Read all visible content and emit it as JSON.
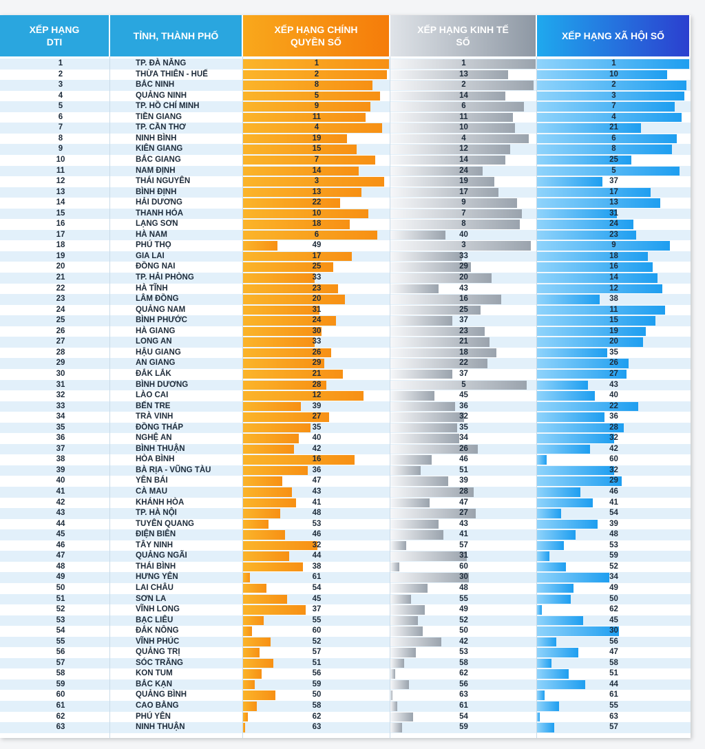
{
  "table": {
    "headers": [
      "XẾP HẠNG DTI",
      "TỈNH, THÀNH PHỐ",
      "XẾP HẠNG CHÍNH QUYỀN SỐ",
      "XẾP HẠNG KINH TẾ SỐ",
      "XẾP HẠNG XÃ HỘI SỐ"
    ],
    "rows": [
      [
        1,
        "TP. ĐÀ NẴNG",
        1,
        1,
        1
      ],
      [
        2,
        "THỪA THIÊN - HUẾ",
        2,
        13,
        10
      ],
      [
        3,
        "BẮC NINH",
        8,
        2,
        2
      ],
      [
        4,
        "QUẢNG NINH",
        5,
        14,
        3
      ],
      [
        5,
        "TP. HỒ CHÍ MINH",
        9,
        6,
        7
      ],
      [
        6,
        "TIỀN GIANG",
        11,
        11,
        4
      ],
      [
        7,
        "TP. CẦN THƠ",
        4,
        10,
        21
      ],
      [
        8,
        "NINH BÌNH",
        19,
        4,
        6
      ],
      [
        9,
        "KIÊN GIANG",
        15,
        12,
        8
      ],
      [
        10,
        "BẮC GIANG",
        7,
        14,
        25
      ],
      [
        11,
        "NAM ĐỊNH",
        14,
        24,
        5
      ],
      [
        12,
        "THÁI NGUYÊN",
        3,
        19,
        37
      ],
      [
        13,
        "BÌNH ĐỊNH",
        13,
        17,
        17
      ],
      [
        14,
        "HẢI DƯƠNG",
        22,
        9,
        13
      ],
      [
        15,
        "THANH HÓA",
        10,
        7,
        31
      ],
      [
        16,
        "LẠNG SƠN",
        18,
        8,
        24
      ],
      [
        17,
        "HÀ NAM",
        6,
        40,
        23
      ],
      [
        18,
        "PHÚ THỌ",
        49,
        3,
        9
      ],
      [
        19,
        "GIA LAI",
        17,
        33,
        18
      ],
      [
        20,
        "ĐỒNG NAI",
        25,
        29,
        16
      ],
      [
        21,
        "TP. HẢI PHÒNG",
        33,
        20,
        14
      ],
      [
        22,
        "HÀ TĨNH",
        23,
        43,
        12
      ],
      [
        23,
        "LÂM ĐỒNG",
        20,
        16,
        38
      ],
      [
        24,
        "QUẢNG NAM",
        31,
        25,
        11
      ],
      [
        25,
        "BÌNH PHƯỚC",
        24,
        37,
        15
      ],
      [
        26,
        "HÀ GIANG",
        30,
        23,
        19
      ],
      [
        27,
        "LONG AN",
        33,
        21,
        20
      ],
      [
        28,
        "HẬU GIANG",
        26,
        18,
        35
      ],
      [
        29,
        "AN GIANG",
        29,
        22,
        26
      ],
      [
        30,
        "ĐẮK LẮK",
        21,
        37,
        27
      ],
      [
        31,
        "BÌNH DƯƠNG",
        28,
        5,
        43
      ],
      [
        32,
        "LÀO CAI",
        12,
        45,
        40
      ],
      [
        33,
        "BẾN TRE",
        39,
        36,
        22
      ],
      [
        34,
        "TRÀ VINH",
        27,
        32,
        36
      ],
      [
        35,
        "ĐỒNG THÁP",
        35,
        35,
        28
      ],
      [
        36,
        "NGHỆ AN",
        40,
        34,
        32
      ],
      [
        37,
        "BÌNH THUẬN",
        42,
        26,
        42
      ],
      [
        38,
        "HÒA BÌNH",
        16,
        46,
        60
      ],
      [
        39,
        "BÀ RỊA - VŨNG TÀU",
        36,
        51,
        32
      ],
      [
        40,
        "YÊN BÁI",
        47,
        39,
        29
      ],
      [
        41,
        "CÀ MAU",
        43,
        28,
        46
      ],
      [
        42,
        "KHÁNH HÒA",
        41,
        47,
        41
      ],
      [
        43,
        "TP. HÀ NỘI",
        48,
        27,
        54
      ],
      [
        44,
        "TUYÊN QUANG",
        53,
        43,
        39
      ],
      [
        45,
        "ĐIỆN BIÊN",
        46,
        41,
        48
      ],
      [
        46,
        "TÂY NINH",
        32,
        57,
        53
      ],
      [
        47,
        "QUẢNG NGÃI",
        44,
        31,
        59
      ],
      [
        48,
        "THÁI BÌNH",
        38,
        60,
        52
      ],
      [
        49,
        "HƯNG YÊN",
        61,
        30,
        34
      ],
      [
        50,
        "LAI CHÂU",
        54,
        48,
        49
      ],
      [
        51,
        "SƠN LA",
        45,
        55,
        50
      ],
      [
        52,
        "VĨNH LONG",
        37,
        49,
        62
      ],
      [
        53,
        "BẠC LIÊU",
        55,
        52,
        45
      ],
      [
        54,
        "ĐẮK NÔNG",
        60,
        50,
        30
      ],
      [
        55,
        "VĨNH PHÚC",
        52,
        42,
        56
      ],
      [
        56,
        "QUẢNG TRỊ",
        57,
        53,
        47
      ],
      [
        57,
        "SÓC TRĂNG",
        51,
        58,
        58
      ],
      [
        58,
        "KON TUM",
        56,
        62,
        51
      ],
      [
        59,
        "BẮC KẠN",
        59,
        56,
        44
      ],
      [
        60,
        "QUẢNG BÌNH",
        50,
        63,
        61
      ],
      [
        61,
        "CAO BẰNG",
        58,
        61,
        55
      ],
      [
        62,
        "PHÚ YÊN",
        62,
        54,
        63
      ],
      [
        63,
        "NINH THUẬN",
        63,
        59,
        57
      ]
    ]
  }
}
